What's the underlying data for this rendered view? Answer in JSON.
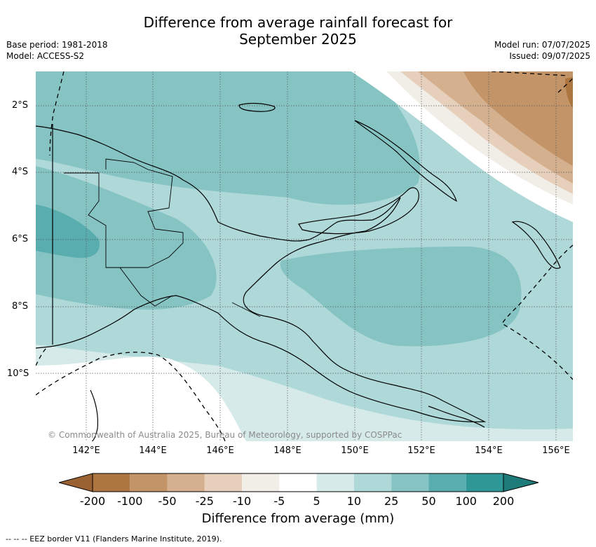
{
  "title": {
    "line1": "Difference from average rainfall forecast for",
    "line2": "September 2025"
  },
  "meta_left": {
    "base_period": "Base period: 1981-2018",
    "model": "Model: ACCESS-S2"
  },
  "meta_right": {
    "model_run": "Model run: 07/07/2025",
    "issued": "Issued: 09/07/2025"
  },
  "latitude_labels": [
    "2°S",
    "4°S",
    "6°S",
    "8°S",
    "10°S"
  ],
  "longitude_labels": [
    "142°E",
    "144°E",
    "146°E",
    "148°E",
    "150°E",
    "152°E",
    "154°E",
    "156°E"
  ],
  "copyright": "© Commonwealth of Australia 2025, Bureau of Meteorology, supported by COSPPac",
  "colorbar": {
    "title": "Difference from average (mm)",
    "tick_labels": [
      "-200",
      "-100",
      "-50",
      "-25",
      "-10",
      "-5",
      "5",
      "10",
      "25",
      "50",
      "100",
      "200"
    ],
    "colors": {
      "below_min": "#9a6232",
      "-200_-100": "#ad753f",
      "-100_-50": "#c39467",
      "-50_-25": "#d4b08f",
      "-25_-10": "#e6d0bc",
      "-10_-5": "#f1ede7",
      "-5_5": "#ffffff",
      "5_10": "#d6eaea",
      "10_25": "#afd8d8",
      "25_50": "#86c4c4",
      "50_100": "#5aadae",
      "100_200": "#2f9796",
      "above_max": "#1d7b79"
    }
  },
  "footnote": "--  --  -- EEZ border V11 (Flanders Marine Institute, 2019)."
}
